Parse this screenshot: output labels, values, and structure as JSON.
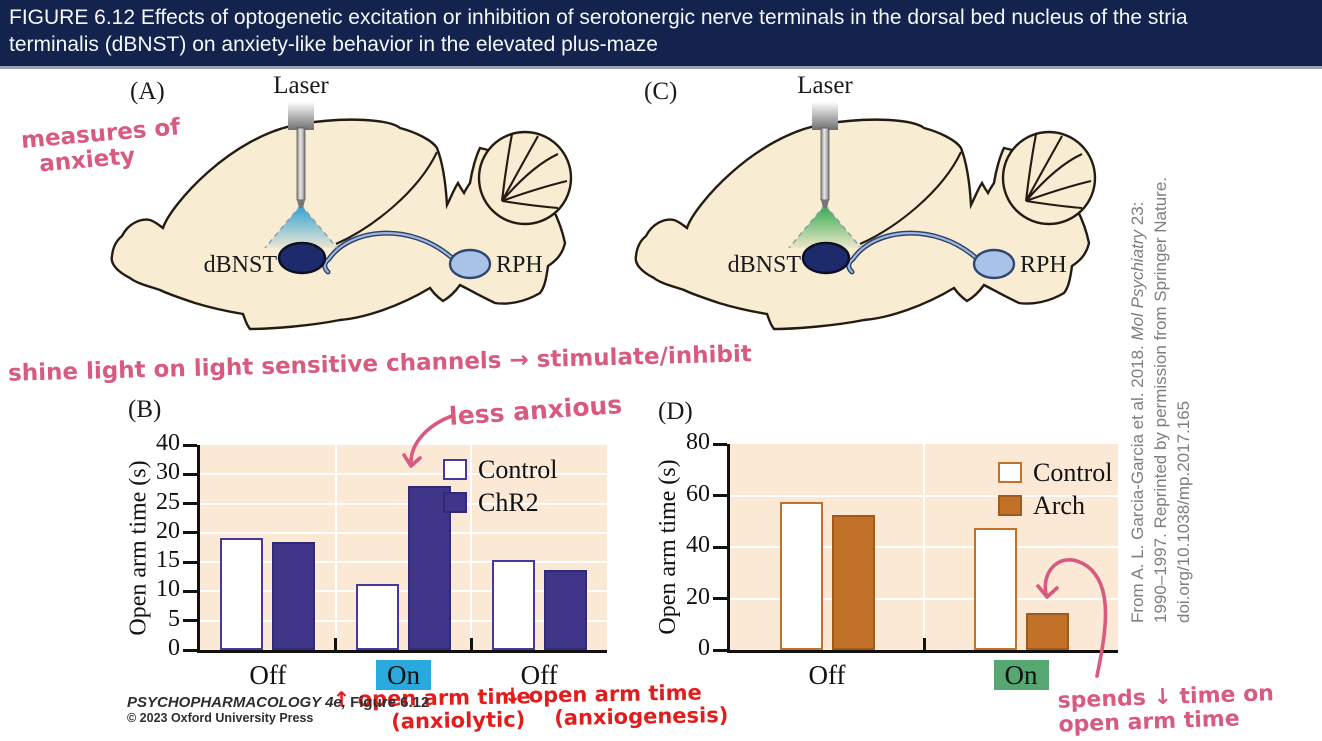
{
  "header": {
    "caption_line1": "FIGURE 6.12  Effects of optogenetic excitation or inhibition of serotonergic nerve terminals in the dorsal bed nucleus of the stria",
    "caption_line2": "terminalis (dBNST) on anxiety-like behavior in the elevated plus-maze"
  },
  "panel_a": {
    "label": "(A)",
    "laser": "Laser",
    "dbnst": "dBNST",
    "rph": "RPH"
  },
  "panel_c": {
    "label": "(C)",
    "laser": "Laser",
    "dbnst": "dBNST",
    "rph": "RPH"
  },
  "panel_b_label": "(B)",
  "panel_d_label": "(D)",
  "chart_data": [
    {
      "id": "B",
      "type": "bar",
      "ylabel": "Open arm time (s)",
      "categories": [
        "Off",
        "On",
        "Off"
      ],
      "series": [
        {
          "name": "Control",
          "fill": "#ffffff",
          "stroke": "#46399b",
          "values": [
            19.2,
            11.2,
            15.3
          ]
        },
        {
          "name": "ChR2",
          "fill": "#3f3589",
          "stroke": "#332a75",
          "values": [
            18.5,
            28,
            13.7
          ]
        }
      ],
      "yticks": [
        0,
        5,
        10,
        15,
        20,
        25,
        30,
        40
      ],
      "ylim": [
        0,
        40
      ],
      "grid": true,
      "legend_position": "top-right",
      "highlight_index": 1,
      "highlight_color": "#29a9de"
    },
    {
      "id": "D",
      "type": "bar",
      "ylabel": "Open arm time (s)",
      "categories": [
        "Off",
        "On"
      ],
      "series": [
        {
          "name": "Control",
          "fill": "#ffffff",
          "stroke": "#c17128",
          "values": [
            57.5,
            47.5
          ]
        },
        {
          "name": "Arch",
          "fill": "#c17128",
          "stroke": "#a05a1c",
          "values": [
            52.5,
            14.5
          ]
        }
      ],
      "yticks": [
        0,
        20,
        40,
        60,
        80
      ],
      "ylim": [
        0,
        80
      ],
      "grid": true,
      "legend_position": "top-right",
      "highlight_index": 1,
      "highlight_color": "#57a773"
    }
  ],
  "annotations": {
    "measures": {
      "lines": [
        "measures of",
        "anxiety"
      ]
    },
    "shine": {
      "text": "shine light on light sensitive channels → stimulate/inhibit"
    },
    "less_anxious": {
      "text": "less anxious"
    },
    "up_open_arm": {
      "lines": [
        "↑ open arm time",
        "(anxiolytic)"
      ]
    },
    "down_open_arm": {
      "lines": [
        "↓ open arm time",
        "(anxiogenesis)"
      ]
    },
    "spends": {
      "lines": [
        "spends ↓ time on",
        "open arm time"
      ]
    }
  },
  "citation": {
    "line1_pre": "From A. L. Garcia-Garcia et al. 2018. ",
    "line1_italic": "Mol Psychiatry",
    "line1_post": " 23:",
    "line2": "1990–1997. Reprinted by permission from Springer Nature.",
    "line3": "doi.org/10.1038/mp.2017.165"
  },
  "credit": {
    "book_italic": "PSYCHOPHARMACOLOGY 4e,",
    "figure": " Figure 6.12",
    "copyright": "© 2023 Oxford University Press"
  },
  "colors": {
    "header_bg": "#13234d",
    "peach": "#fbe9d6",
    "navy": "#3f3589",
    "orange": "#c17128",
    "cyan_on": "#29a9de",
    "green_on": "#57a773",
    "pink": "#d85a7e",
    "red": "#e31c1c",
    "laser_blue": "#1f9cd6",
    "laser_green": "#23a344",
    "dbnst_fill": "#1d2a6b",
    "rph_fill": "#a9c2e8",
    "brain_fill": "#f8ecd2",
    "outline": "#241c12",
    "citation_gray": "#7e7e7e"
  }
}
